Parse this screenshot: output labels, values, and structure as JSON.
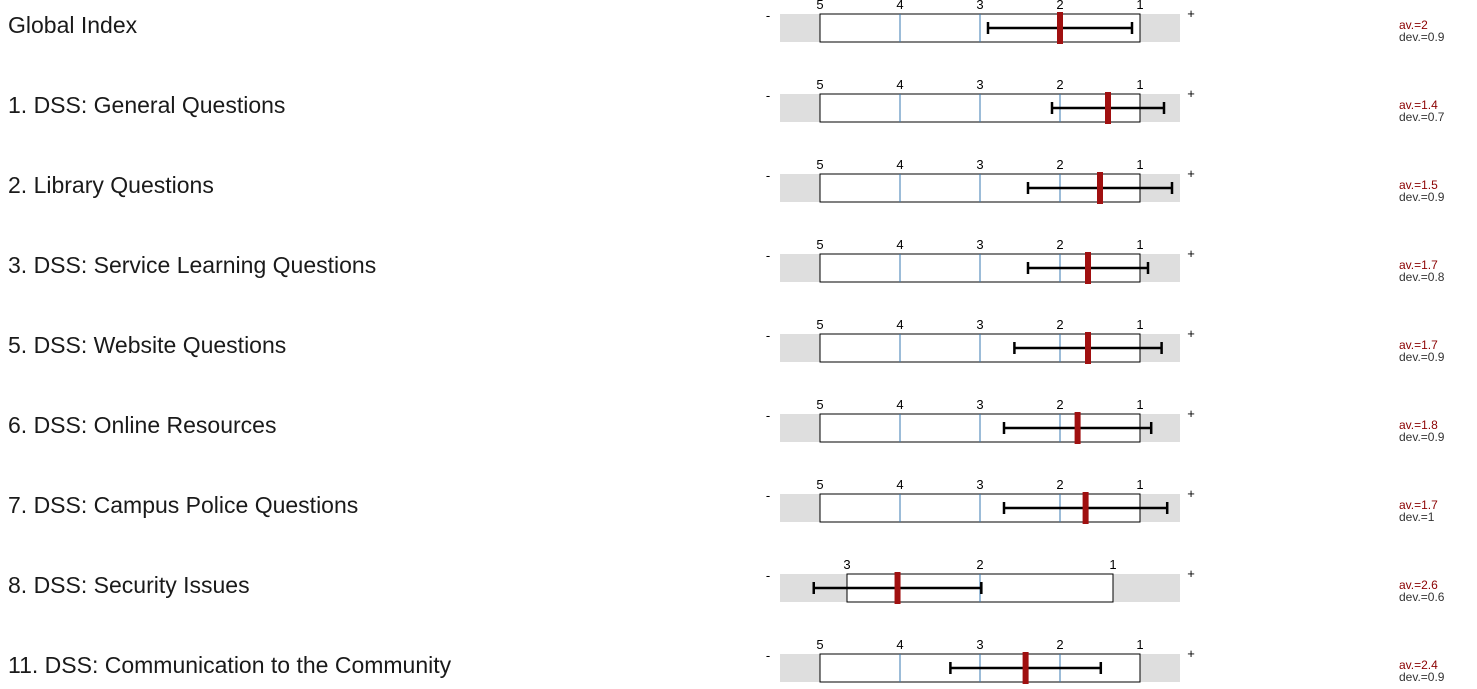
{
  "chart_data": {
    "type": "range-profile",
    "scale_direction": "descending",
    "left_sign": "-",
    "right_sign": "+",
    "colors": {
      "mean_marker": "#a01010",
      "deviation_bar": "#000000",
      "gridline": "#3a78b0",
      "outer_band": "#dedede",
      "av_text": "#8b0000",
      "dev_text": "#333333",
      "box_border": "#000000"
    },
    "rows": [
      {
        "label": "Global Index",
        "scale": [
          5,
          1
        ],
        "ticks": [
          "5",
          "4",
          "3",
          "2",
          "1"
        ],
        "mean": 2.0,
        "deviation": 0.9,
        "av_text": "av.=2",
        "dev_text": "dev.=0.9"
      },
      {
        "label": "1. DSS: General Questions",
        "scale": [
          5,
          1
        ],
        "ticks": [
          "5",
          "4",
          "3",
          "2",
          "1"
        ],
        "mean": 1.4,
        "deviation": 0.7,
        "av_text": "av.=1.4",
        "dev_text": "dev.=0.7"
      },
      {
        "label": "2. Library Questions",
        "scale": [
          5,
          1
        ],
        "ticks": [
          "5",
          "4",
          "3",
          "2",
          "1"
        ],
        "mean": 1.5,
        "deviation": 0.9,
        "av_text": "av.=1.5",
        "dev_text": "dev.=0.9"
      },
      {
        "label": "3. DSS: Service Learning Questions",
        "scale": [
          5,
          1
        ],
        "ticks": [
          "5",
          "4",
          "3",
          "2",
          "1"
        ],
        "mean": 1.65,
        "deviation": 0.75,
        "av_text": "av.=1.7",
        "dev_text": "dev.=0.8"
      },
      {
        "label": "5. DSS: Website Questions",
        "scale": [
          5,
          1
        ],
        "ticks": [
          "5",
          "4",
          "3",
          "2",
          "1"
        ],
        "mean": 1.65,
        "deviation": 0.92,
        "av_text": "av.=1.7",
        "dev_text": "dev.=0.9"
      },
      {
        "label": "6. DSS: Online Resources",
        "scale": [
          5,
          1
        ],
        "ticks": [
          "5",
          "4",
          "3",
          "2",
          "1"
        ],
        "mean": 1.78,
        "deviation": 0.92,
        "av_text": "av.=1.8",
        "dev_text": "dev.=0.9"
      },
      {
        "label": "7. DSS: Campus Police Questions",
        "scale": [
          5,
          1
        ],
        "ticks": [
          "5",
          "4",
          "3",
          "2",
          "1"
        ],
        "mean": 1.68,
        "deviation": 1.02,
        "av_text": "av.=1.7",
        "dev_text": "dev.=1"
      },
      {
        "label": "8. DSS: Security Issues",
        "scale": [
          3,
          1
        ],
        "ticks": [
          "3",
          "2",
          "1"
        ],
        "mean": 2.62,
        "deviation": 0.63,
        "av_text": "av.=2.6",
        "dev_text": "dev.=0.6"
      },
      {
        "label": "11. DSS:  Communication to the Community",
        "scale": [
          5,
          1
        ],
        "ticks": [
          "5",
          "4",
          "3",
          "2",
          "1"
        ],
        "mean": 2.43,
        "deviation": 0.94,
        "av_text": "av.=2.4",
        "dev_text": "dev.=0.9"
      }
    ]
  }
}
